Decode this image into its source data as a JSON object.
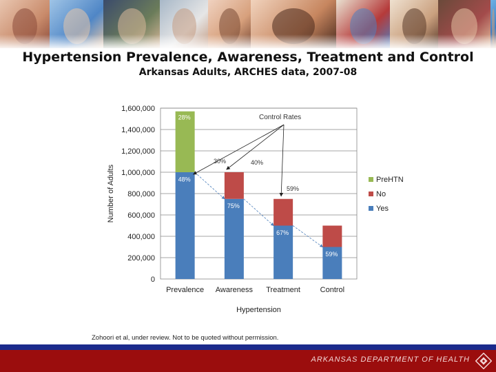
{
  "header": {
    "title": "Hypertension Prevalence, Awareness, Treatment and Control",
    "subtitle": "Arkansas Adults, ARCHES data, 2007-08"
  },
  "banner": {
    "photos": [
      "family-photo",
      "children-photo",
      "men-photo",
      "doctor-photo",
      "woman-photo",
      "woman-smiling-photo",
      "crowd-photo",
      "elderly-photo",
      "dining-photo",
      "girl-helmet-photo"
    ]
  },
  "chart_data": {
    "type": "bar",
    "stacked": true,
    "xlabel": "Hypertension",
    "ylabel": "Number of Adults",
    "ylim": [
      0,
      1600000
    ],
    "yticks": [
      "0",
      "200,000",
      "400,000",
      "600,000",
      "800,000",
      "1,000,000",
      "1,200,000",
      "1,400,000",
      "1,600,000"
    ],
    "categories": [
      "Prevalence",
      "Awareness",
      "Treatment",
      "Control"
    ],
    "series": [
      {
        "name": "Yes",
        "color": "#4a7ebb",
        "values": [
          1000000,
          750000,
          500000,
          300000
        ]
      },
      {
        "name": "No",
        "color": "#be4b48",
        "values": [
          0,
          250000,
          250000,
          200000
        ]
      },
      {
        "name": "PreHTN",
        "color": "#98b954",
        "values": [
          570000,
          0,
          0,
          0
        ]
      }
    ],
    "legend": [
      "PreHTN",
      "No",
      "Yes"
    ],
    "bar_labels": [
      "28%",
      "48%",
      "75%",
      "67%",
      "59%"
    ],
    "annotations": {
      "title": "Control Rates",
      "rates": [
        "30%",
        "40%",
        "59%"
      ]
    }
  },
  "footnote": "Zohoori et al, under review. Not to be quoted without permission.",
  "footer": {
    "department": "ARKANSAS DEPARTMENT OF HEALTH"
  }
}
